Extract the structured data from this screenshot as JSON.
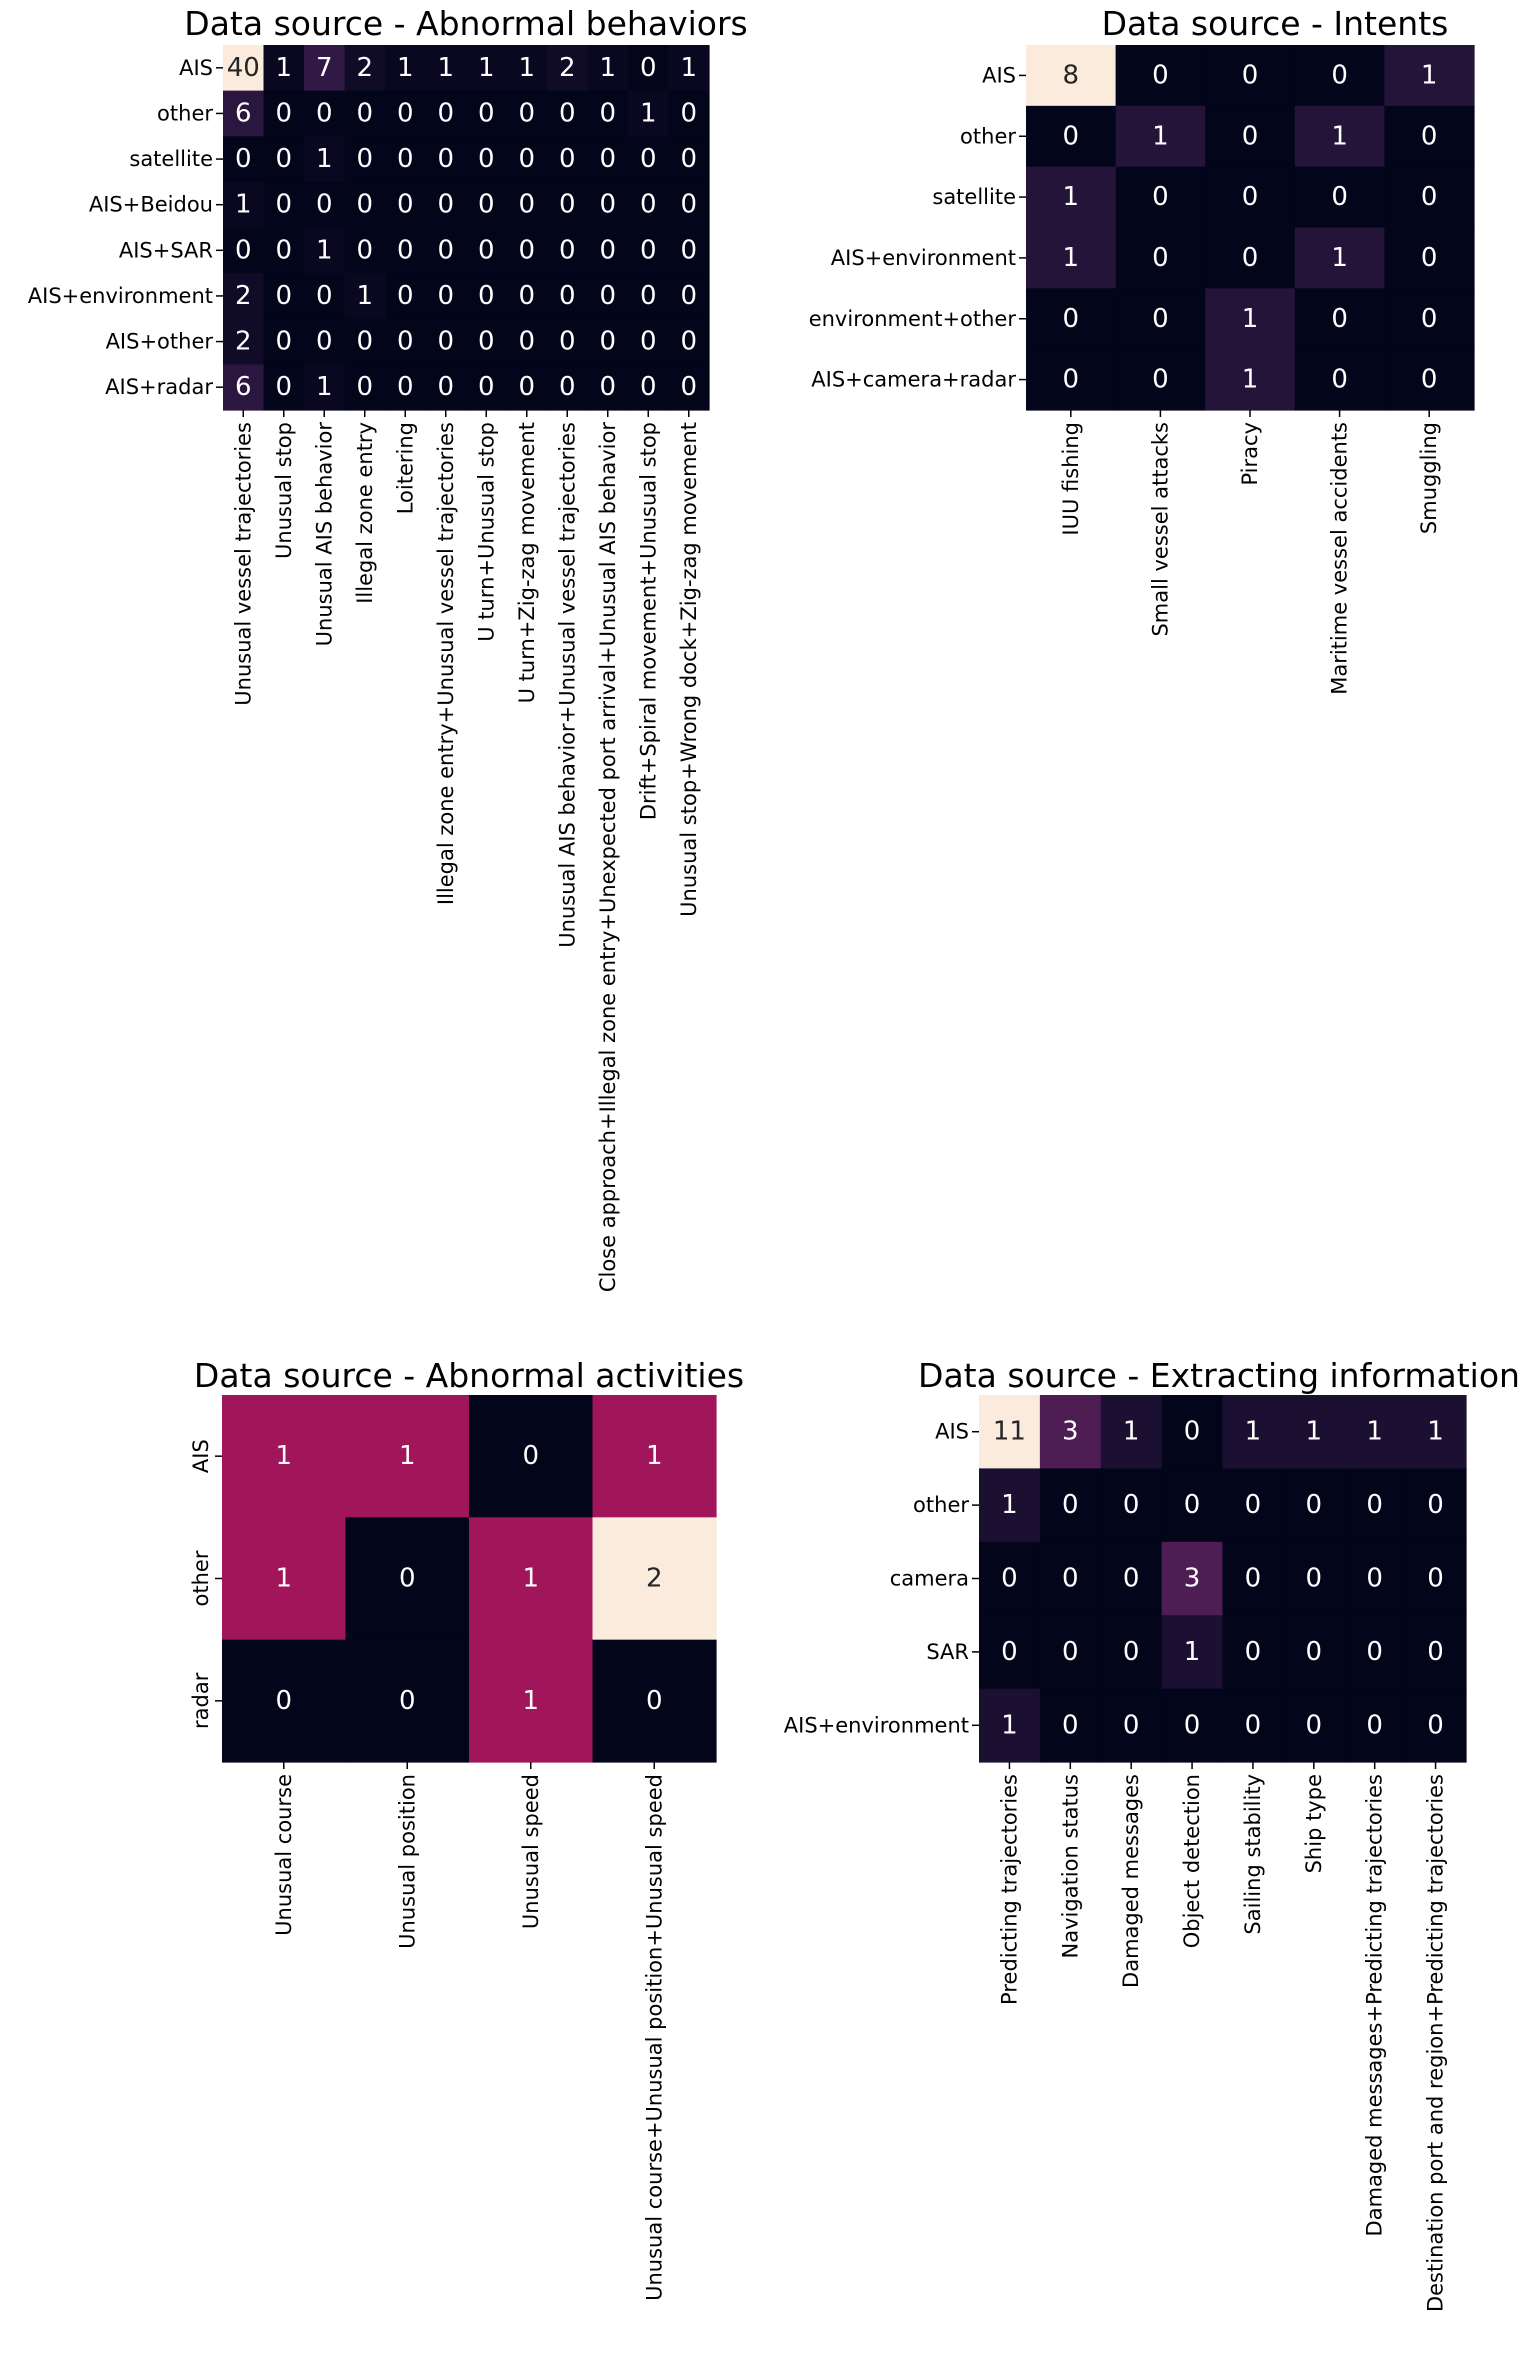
{
  "chart_data": [
    {
      "type": "heatmap",
      "title": "Data source - Abnormal behaviors",
      "rows": [
        "AIS",
        "other",
        "satellite",
        "AIS+Beidou",
        "AIS+SAR",
        "AIS+environment",
        "AIS+other",
        "AIS+radar"
      ],
      "columns": [
        "Unusual vessel trajectories",
        "Unusual stop",
        "Unusual AIS behavior",
        "Illegal zone entry",
        "Loitering",
        "Illegal zone entry+Unusual vessel trajectories",
        "U turn+Unusual stop",
        "U turn+Zig-zag movement",
        "Unusual AIS behavior+Unusual vessel trajectories",
        "Close approach+Illegal zone entry+Unexpected port arrival+Unusual AIS behavior",
        "Drift+Spiral movement+Unusual stop",
        "Unusual stop+Wrong dock+Zig-zag movement"
      ],
      "values": [
        [
          40,
          1,
          7,
          2,
          1,
          1,
          1,
          1,
          2,
          1,
          0,
          1
        ],
        [
          6,
          0,
          0,
          0,
          0,
          0,
          0,
          0,
          0,
          0,
          1,
          0
        ],
        [
          0,
          0,
          1,
          0,
          0,
          0,
          0,
          0,
          0,
          0,
          0,
          0
        ],
        [
          1,
          0,
          0,
          0,
          0,
          0,
          0,
          0,
          0,
          0,
          0,
          0
        ],
        [
          0,
          0,
          1,
          0,
          0,
          0,
          0,
          0,
          0,
          0,
          0,
          0
        ],
        [
          2,
          0,
          0,
          1,
          0,
          0,
          0,
          0,
          0,
          0,
          0,
          0
        ],
        [
          2,
          0,
          0,
          0,
          0,
          0,
          0,
          0,
          0,
          0,
          0,
          0
        ],
        [
          6,
          0,
          1,
          0,
          0,
          0,
          0,
          0,
          0,
          0,
          0,
          0
        ]
      ],
      "colormap": "rocket",
      "annotations": true,
      "colorbar": false
    },
    {
      "type": "heatmap",
      "title": "Data source - Intents",
      "rows": [
        "AIS",
        "other",
        "satellite",
        "AIS+environment",
        "environment+other",
        "AIS+camera+radar"
      ],
      "columns": [
        "IUU fishing",
        "Small vessel attacks",
        "Piracy",
        "Maritime vessel accidents",
        "Smuggling"
      ],
      "values": [
        [
          8,
          0,
          0,
          0,
          1
        ],
        [
          0,
          1,
          0,
          1,
          0
        ],
        [
          1,
          0,
          0,
          0,
          0
        ],
        [
          1,
          0,
          0,
          1,
          0
        ],
        [
          0,
          0,
          1,
          0,
          0
        ],
        [
          0,
          0,
          1,
          0,
          0
        ]
      ],
      "colormap": "rocket",
      "annotations": true,
      "colorbar": false
    },
    {
      "type": "heatmap",
      "title": "Data source - Abnormal activities",
      "rows": [
        "AIS",
        "other",
        "radar"
      ],
      "columns": [
        "Unusual course",
        "Unusual position",
        "Unusual speed",
        "Unusual course+Unusual position+Unusual speed"
      ],
      "values": [
        [
          1,
          1,
          0,
          1
        ],
        [
          1,
          0,
          1,
          2
        ],
        [
          0,
          0,
          1,
          0
        ]
      ],
      "colormap": "rocket",
      "annotations": true,
      "colorbar": false,
      "row_labels_rotated": true
    },
    {
      "type": "heatmap",
      "title": "Data source - Extracting information",
      "rows": [
        "AIS",
        "other",
        "camera",
        "SAR",
        "AIS+environment"
      ],
      "columns": [
        "Predicting trajectories",
        "Navigation status",
        "Damaged messages",
        "Object detection",
        "Sailing stability",
        "Ship type",
        "Damaged messages+Predicting trajectories",
        "Destination port and region+Predicting trajectories"
      ],
      "values": [
        [
          11,
          3,
          1,
          0,
          1,
          1,
          1,
          1
        ],
        [
          1,
          0,
          0,
          0,
          0,
          0,
          0,
          0
        ],
        [
          0,
          0,
          0,
          3,
          0,
          0,
          0,
          0
        ],
        [
          0,
          0,
          0,
          1,
          0,
          0,
          0,
          0
        ],
        [
          1,
          0,
          0,
          0,
          0,
          0,
          0,
          0
        ]
      ],
      "colormap": "rocket",
      "annotations": true,
      "colorbar": false
    }
  ]
}
